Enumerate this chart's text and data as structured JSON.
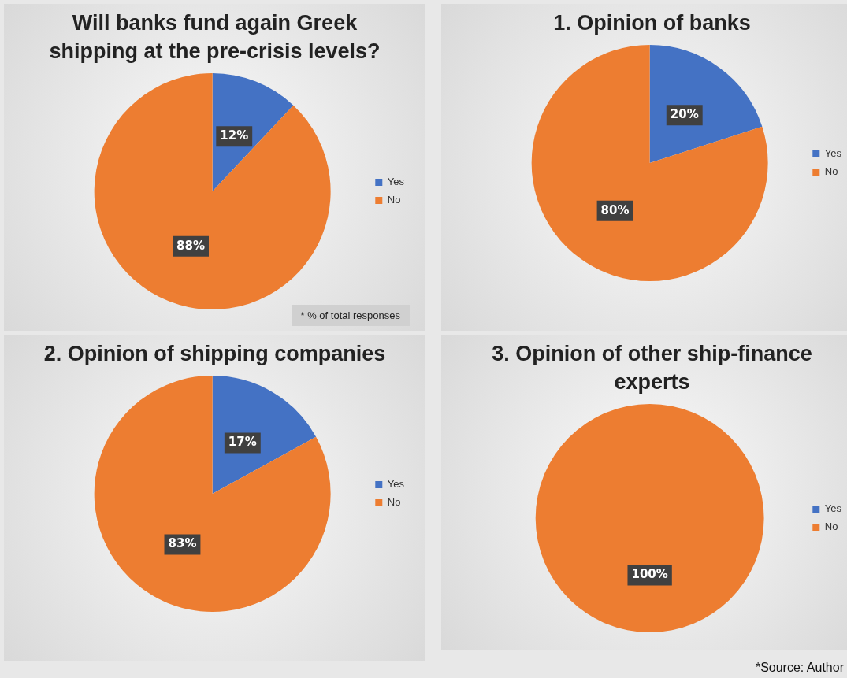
{
  "chart_data": [
    {
      "type": "pie",
      "title": "Will banks fund again Greek shipping at the pre-crisis levels?",
      "categories": [
        "Yes",
        "No"
      ],
      "values": [
        12,
        88
      ],
      "colors": [
        "#4472c4",
        "#ed7d31"
      ],
      "value_labels": [
        "12%",
        "88%"
      ],
      "legend": "right",
      "annotations": [
        "* % of total responses"
      ]
    },
    {
      "type": "pie",
      "title": "1. Opinion of banks",
      "categories": [
        "Yes",
        "No"
      ],
      "values": [
        20,
        80
      ],
      "colors": [
        "#4472c4",
        "#ed7d31"
      ],
      "value_labels": [
        "20%",
        "80%"
      ],
      "legend": "right"
    },
    {
      "type": "pie",
      "title": "2. Opinion of shipping companies",
      "categories": [
        "Yes",
        "No"
      ],
      "values": [
        17,
        83
      ],
      "colors": [
        "#4472c4",
        "#ed7d31"
      ],
      "value_labels": [
        "17%",
        "83%"
      ],
      "legend": "right"
    },
    {
      "type": "pie",
      "title": "3. Opinion of other ship-finance experts",
      "categories": [
        "Yes",
        "No"
      ],
      "values": [
        0,
        100
      ],
      "colors": [
        "#4472c4",
        "#ed7d31"
      ],
      "value_labels": [
        null,
        "100%"
      ],
      "legend": "right",
      "annotations": [
        "*Source: Author"
      ]
    }
  ]
}
